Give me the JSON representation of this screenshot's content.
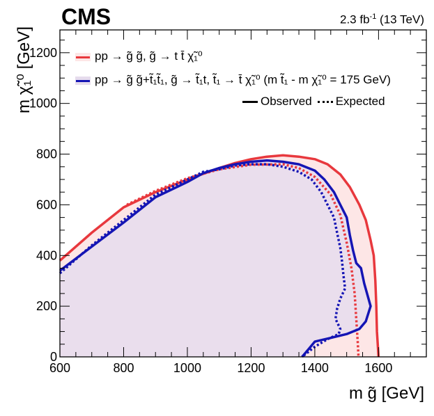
{
  "header": {
    "experiment": "CMS",
    "luminosity": "2.3 fb",
    "luminosity_exp": "-1",
    "energy": "(13 TeV)"
  },
  "legend": {
    "entry_red": "pp → g̃ g̃, g̃ → t t̄ χ̃₁⁰",
    "entry_blue": "pp → g̃ g̃+t̃₁t̃₁, g̃ → t̃₁t,  t̃₁ → t̄ χ̃₁⁰   (m t̃₁ - m χ̃₁⁰ = 175 GeV)",
    "observed": "Observed",
    "expected": "Expected"
  },
  "colors": {
    "red": "#e8383d",
    "blue": "#1515b4",
    "red_fill": "#fde6e6",
    "blue_fill": "#e6dced"
  },
  "chart_data": {
    "type": "line",
    "title": "CMS",
    "xlabel": "m g̃ [GeV]",
    "ylabel": "m χ̃₁⁰ [GeV]",
    "xlim": [
      600,
      1750
    ],
    "ylim": [
      0,
      1290
    ],
    "xticks": [
      600,
      800,
      1000,
      1200,
      1400,
      1600
    ],
    "yticks": [
      0,
      200,
      400,
      600,
      800,
      1000,
      1200
    ],
    "series": [
      {
        "name": "gluino to t t-bar neutralino, Observed",
        "color_key": "red",
        "style": "solid",
        "fill": true,
        "points": [
          [
            600,
            380
          ],
          [
            700,
            490
          ],
          [
            800,
            590
          ],
          [
            900,
            650
          ],
          [
            1000,
            700
          ],
          [
            1100,
            745
          ],
          [
            1150,
            765
          ],
          [
            1200,
            780
          ],
          [
            1250,
            790
          ],
          [
            1300,
            795
          ],
          [
            1350,
            790
          ],
          [
            1400,
            780
          ],
          [
            1440,
            760
          ],
          [
            1480,
            720
          ],
          [
            1510,
            670
          ],
          [
            1540,
            600
          ],
          [
            1560,
            540
          ],
          [
            1575,
            460
          ],
          [
            1585,
            400
          ],
          [
            1590,
            300
          ],
          [
            1593,
            200
          ],
          [
            1595,
            100
          ],
          [
            1600,
            0
          ]
        ]
      },
      {
        "name": "gluino to t t-bar neutralino, Expected",
        "color_key": "red",
        "style": "dotted",
        "fill": false,
        "points": [
          [
            810,
            600
          ],
          [
            900,
            655
          ],
          [
            1000,
            705
          ],
          [
            1100,
            740
          ],
          [
            1200,
            758
          ],
          [
            1300,
            760
          ],
          [
            1350,
            745
          ],
          [
            1400,
            710
          ],
          [
            1450,
            640
          ],
          [
            1480,
            560
          ],
          [
            1500,
            450
          ],
          [
            1515,
            350
          ],
          [
            1525,
            250
          ],
          [
            1530,
            150
          ],
          [
            1535,
            50
          ],
          [
            1537,
            0
          ]
        ]
      },
      {
        "name": "gluino + stop pair, Observed",
        "color_key": "blue",
        "style": "solid",
        "fill": true,
        "points": [
          [
            600,
            340
          ],
          [
            700,
            435
          ],
          [
            800,
            530
          ],
          [
            900,
            630
          ],
          [
            1000,
            690
          ],
          [
            1050,
            725
          ],
          [
            1100,
            745
          ],
          [
            1150,
            760
          ],
          [
            1200,
            770
          ],
          [
            1250,
            775
          ],
          [
            1300,
            770
          ],
          [
            1350,
            760
          ],
          [
            1400,
            735
          ],
          [
            1430,
            700
          ],
          [
            1460,
            650
          ],
          [
            1480,
            600
          ],
          [
            1500,
            550
          ],
          [
            1510,
            480
          ],
          [
            1520,
            420
          ],
          [
            1530,
            370
          ],
          [
            1545,
            350
          ],
          [
            1555,
            290
          ],
          [
            1575,
            200
          ],
          [
            1560,
            140
          ],
          [
            1540,
            110
          ],
          [
            1500,
            90
          ],
          [
            1450,
            75
          ],
          [
            1400,
            60
          ],
          [
            1380,
            30
          ],
          [
            1360,
            0
          ]
        ]
      },
      {
        "name": "gluino + stop pair, Expected",
        "color_key": "blue",
        "style": "dotted",
        "fill": false,
        "points": [
          [
            600,
            330
          ],
          [
            700,
            440
          ],
          [
            800,
            540
          ],
          [
            900,
            640
          ],
          [
            1000,
            700
          ],
          [
            1050,
            730
          ],
          [
            1100,
            740
          ],
          [
            1150,
            755
          ],
          [
            1200,
            760
          ],
          [
            1250,
            760
          ],
          [
            1300,
            750
          ],
          [
            1350,
            730
          ],
          [
            1390,
            700
          ],
          [
            1420,
            650
          ],
          [
            1440,
            600
          ],
          [
            1460,
            550
          ],
          [
            1470,
            490
          ],
          [
            1480,
            430
          ],
          [
            1485,
            380
          ],
          [
            1490,
            320
          ],
          [
            1495,
            270
          ],
          [
            1480,
            230
          ],
          [
            1470,
            190
          ],
          [
            1465,
            150
          ],
          [
            1480,
            110
          ],
          [
            1475,
            90
          ],
          [
            1440,
            70
          ],
          [
            1400,
            40
          ],
          [
            1380,
            20
          ],
          [
            1360,
            0
          ]
        ]
      }
    ]
  }
}
